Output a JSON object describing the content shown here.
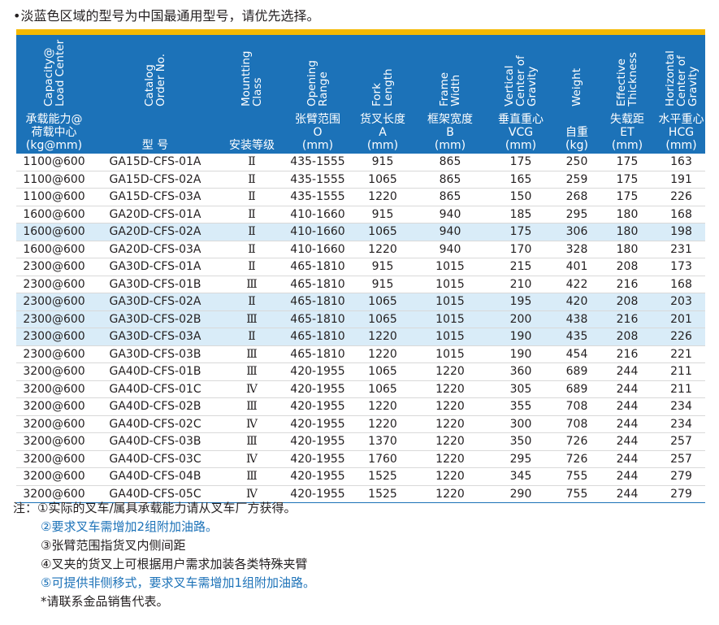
{
  "top_note": "•淡蓝色区域的型号为中国最通用型号，请优先选择。",
  "colors": {
    "header_bg": "#1c72b8",
    "highlight_row": "#d9ecf8",
    "top_bar": "#f5b800",
    "note_blue": "#1c72b8"
  },
  "table": {
    "headers": [
      {
        "en": "Capacity@\nLoad Center",
        "cn": "承载能力@\n荷载中心\n(kg@mm)"
      },
      {
        "en": "Catalog\nOrder No.",
        "cn": "型 号"
      },
      {
        "en": "Mountting\nClass",
        "cn": "安装等级"
      },
      {
        "en": "Opening\nRange",
        "cn": "张臂范围\nO\n(mm)"
      },
      {
        "en": "Fork\nLength",
        "cn": "货叉长度\nA\n(mm)"
      },
      {
        "en": "Frame\nWidth",
        "cn": "框架宽度\nB\n(mm)"
      },
      {
        "en": "Vertical\nCenter of\nGravity",
        "cn": "垂直重心\nVCG\n(mm)"
      },
      {
        "en": "Weight",
        "cn": "自重\n(kg)"
      },
      {
        "en": "Effective\nThickness",
        "cn": "失载距\nET\n(mm)"
      },
      {
        "en": "Horizontal\nCenter of\nGravity",
        "cn": "水平重心\nHCG\n(mm)"
      }
    ],
    "rows": [
      {
        "highlight": false,
        "cells": [
          "1100@600",
          "GA15D-CFS-01A",
          "Ⅱ",
          "435-1555",
          "915",
          "865",
          "175",
          "250",
          "175",
          "163"
        ]
      },
      {
        "highlight": false,
        "cells": [
          "1100@600",
          "GA15D-CFS-02A",
          "Ⅱ",
          "435-1555",
          "1065",
          "865",
          "165",
          "259",
          "175",
          "191"
        ]
      },
      {
        "highlight": false,
        "cells": [
          "1100@600",
          "GA15D-CFS-03A",
          "Ⅱ",
          "435-1555",
          "1220",
          "865",
          "150",
          "268",
          "175",
          "226"
        ]
      },
      {
        "highlight": false,
        "cells": [
          "1600@600",
          "GA20D-CFS-01A",
          "Ⅱ",
          "410-1660",
          "915",
          "940",
          "185",
          "295",
          "180",
          "168"
        ]
      },
      {
        "highlight": true,
        "cells": [
          "1600@600",
          "GA20D-CFS-02A",
          "Ⅱ",
          "410-1660",
          "1065",
          "940",
          "175",
          "306",
          "180",
          "198"
        ]
      },
      {
        "highlight": false,
        "cells": [
          "1600@600",
          "GA20D-CFS-03A",
          "Ⅱ",
          "410-1660",
          "1220",
          "940",
          "170",
          "328",
          "180",
          "231"
        ]
      },
      {
        "highlight": false,
        "cells": [
          "2300@600",
          "GA30D-CFS-01A",
          "Ⅱ",
          "465-1810",
          "915",
          "1015",
          "215",
          "401",
          "208",
          "173"
        ]
      },
      {
        "highlight": false,
        "cells": [
          "2300@600",
          "GA30D-CFS-01B",
          "Ⅲ",
          "465-1810",
          "915",
          "1015",
          "210",
          "422",
          "216",
          "168"
        ]
      },
      {
        "highlight": true,
        "cells": [
          "2300@600",
          "GA30D-CFS-02A",
          "Ⅱ",
          "465-1810",
          "1065",
          "1015",
          "195",
          "420",
          "208",
          "203"
        ]
      },
      {
        "highlight": true,
        "cells": [
          "2300@600",
          "GA30D-CFS-02B",
          "Ⅲ",
          "465-1810",
          "1065",
          "1015",
          "200",
          "438",
          "216",
          "201"
        ]
      },
      {
        "highlight": true,
        "cells": [
          "2300@600",
          "GA30D-CFS-03A",
          "Ⅱ",
          "465-1810",
          "1220",
          "1015",
          "190",
          "435",
          "208",
          "226"
        ]
      },
      {
        "highlight": false,
        "cells": [
          "2300@600",
          "GA30D-CFS-03B",
          "Ⅲ",
          "465-1810",
          "1220",
          "1015",
          "190",
          "454",
          "216",
          "221"
        ]
      },
      {
        "highlight": false,
        "cells": [
          "3200@600",
          "GA40D-CFS-01B",
          "Ⅲ",
          "420-1955",
          "1065",
          "1220",
          "360",
          "689",
          "244",
          "211"
        ]
      },
      {
        "highlight": false,
        "cells": [
          "3200@600",
          "GA40D-CFS-01C",
          "Ⅳ",
          "420-1955",
          "1065",
          "1220",
          "305",
          "689",
          "244",
          "211"
        ]
      },
      {
        "highlight": false,
        "cells": [
          "3200@600",
          "GA40D-CFS-02B",
          "Ⅲ",
          "420-1955",
          "1220",
          "1220",
          "355",
          "708",
          "244",
          "234"
        ]
      },
      {
        "highlight": false,
        "cells": [
          "3200@600",
          "GA40D-CFS-02C",
          "Ⅳ",
          "420-1955",
          "1220",
          "1220",
          "300",
          "708",
          "244",
          "234"
        ]
      },
      {
        "highlight": false,
        "cells": [
          "3200@600",
          "GA40D-CFS-03B",
          "Ⅲ",
          "420-1955",
          "1370",
          "1220",
          "350",
          "726",
          "244",
          "257"
        ]
      },
      {
        "highlight": false,
        "cells": [
          "3200@600",
          "GA40D-CFS-03C",
          "Ⅳ",
          "420-1955",
          "1760",
          "1220",
          "295",
          "726",
          "244",
          "257"
        ]
      },
      {
        "highlight": false,
        "cells": [
          "3200@600",
          "GA40D-CFS-04B",
          "Ⅲ",
          "420-1955",
          "1525",
          "1220",
          "345",
          "755",
          "244",
          "279"
        ]
      },
      {
        "highlight": false,
        "cells": [
          "3200@600",
          "GA40D-CFS-05C",
          "Ⅳ",
          "420-1955",
          "1525",
          "1220",
          "290",
          "755",
          "244",
          "279"
        ]
      }
    ]
  },
  "notes": {
    "prefix": "注：",
    "items": [
      {
        "text": "①实际的叉车/属具承载能力请从叉车厂方获得。",
        "blue": false
      },
      {
        "text": "②要求叉车需增加2组附加油路。",
        "blue": true
      },
      {
        "text": "③张臂范围指货叉内侧间距",
        "blue": false
      },
      {
        "text": "④叉夹的货叉上可根据用户需求加装各类特殊夹臂",
        "blue": false
      },
      {
        "text": "⑤可提供非侧移式，要求叉车需增加1组附加油路。",
        "blue": true
      },
      {
        "text": "*请联系金品销售代表。",
        "blue": false
      }
    ]
  }
}
